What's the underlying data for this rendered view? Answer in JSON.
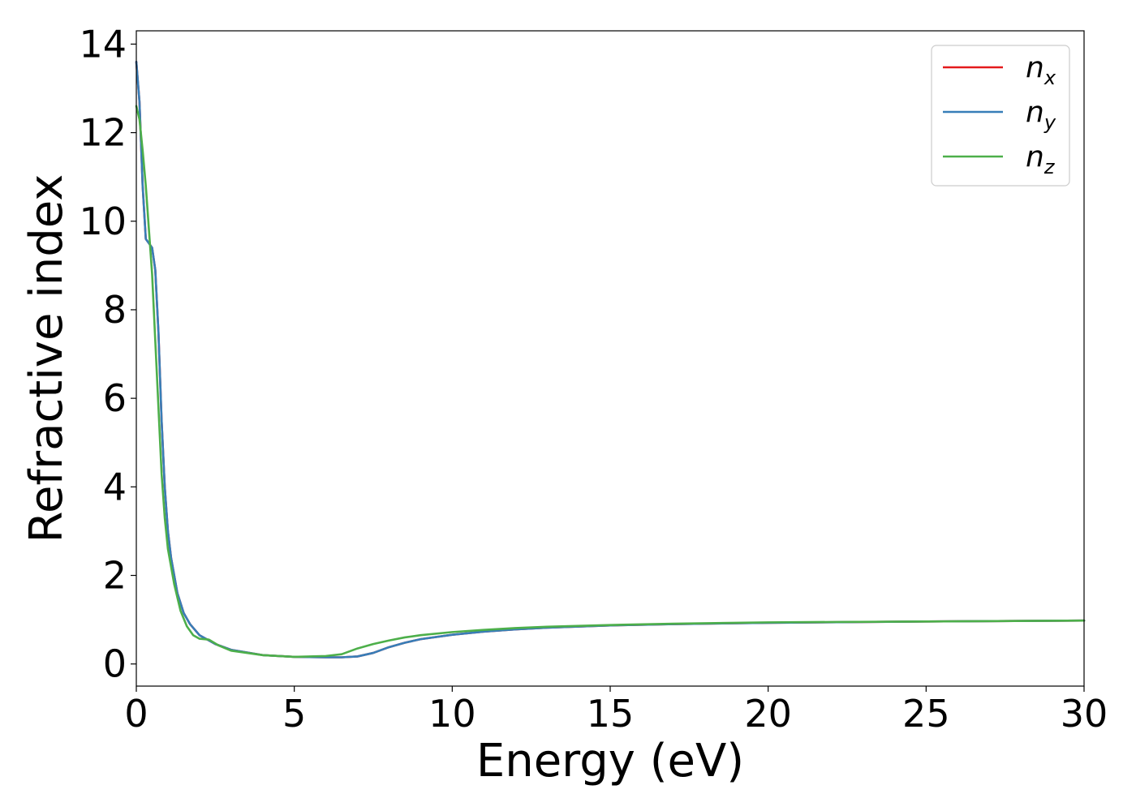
{
  "chart_data": {
    "type": "line",
    "xlabel": "Energy (eV)",
    "ylabel": "Refractive index",
    "xlim": [
      0,
      30
    ],
    "ylim": [
      -0.5,
      14.3
    ],
    "xticks": [
      "0",
      "5",
      "10",
      "15",
      "20",
      "25",
      "30"
    ],
    "yticks": [
      "0",
      "2",
      "4",
      "6",
      "8",
      "10",
      "12",
      "14"
    ],
    "grid": false,
    "legend_position": "top-right",
    "series": [
      {
        "name": "n",
        "sub": "x",
        "color": "#e41a1c",
        "x": [
          0,
          0.1,
          0.2,
          0.3,
          0.4,
          0.5,
          0.6,
          0.7,
          0.8,
          0.9,
          1.0,
          1.1,
          1.2,
          1.3,
          1.5,
          1.7,
          2.0,
          2.5,
          3.0,
          4.0,
          5.0,
          6.0,
          6.5,
          7.0,
          7.5,
          8.0,
          8.5,
          9.0,
          10.0,
          11.0,
          12.0,
          13.0,
          15.0,
          17.0,
          20.0,
          25.0,
          30.0
        ],
        "y": [
          13.6,
          12.7,
          10.8,
          9.6,
          9.5,
          9.4,
          8.9,
          7.5,
          5.5,
          4.0,
          3.0,
          2.4,
          2.0,
          1.6,
          1.15,
          0.9,
          0.65,
          0.45,
          0.32,
          0.2,
          0.16,
          0.15,
          0.15,
          0.17,
          0.25,
          0.38,
          0.48,
          0.56,
          0.66,
          0.73,
          0.78,
          0.82,
          0.87,
          0.9,
          0.93,
          0.96,
          0.98
        ]
      },
      {
        "name": "n",
        "sub": "y",
        "color": "#377eb8",
        "x": [
          0,
          0.1,
          0.2,
          0.3,
          0.4,
          0.5,
          0.6,
          0.7,
          0.8,
          0.9,
          1.0,
          1.1,
          1.2,
          1.3,
          1.5,
          1.7,
          2.0,
          2.5,
          3.0,
          4.0,
          5.0,
          6.0,
          6.5,
          7.0,
          7.5,
          8.0,
          8.5,
          9.0,
          10.0,
          11.0,
          12.0,
          13.0,
          15.0,
          17.0,
          20.0,
          25.0,
          30.0
        ],
        "y": [
          13.6,
          12.7,
          10.8,
          9.6,
          9.5,
          9.4,
          8.9,
          7.5,
          5.5,
          4.0,
          3.0,
          2.4,
          2.0,
          1.6,
          1.15,
          0.9,
          0.65,
          0.45,
          0.32,
          0.2,
          0.16,
          0.15,
          0.15,
          0.17,
          0.25,
          0.38,
          0.48,
          0.56,
          0.66,
          0.73,
          0.78,
          0.82,
          0.87,
          0.9,
          0.93,
          0.96,
          0.98
        ]
      },
      {
        "name": "n",
        "sub": "z",
        "color": "#4daf4a",
        "x": [
          0,
          0.1,
          0.2,
          0.3,
          0.4,
          0.5,
          0.6,
          0.7,
          0.8,
          0.9,
          1.0,
          1.1,
          1.2,
          1.4,
          1.6,
          1.8,
          2.0,
          2.3,
          2.6,
          3.0,
          4.0,
          5.0,
          6.0,
          6.5,
          7.0,
          7.5,
          8.0,
          8.5,
          9.0,
          10.0,
          11.0,
          12.0,
          13.0,
          15.0,
          17.0,
          20.0,
          25.0,
          30.0
        ],
        "y": [
          12.6,
          12.3,
          11.6,
          10.8,
          9.8,
          8.8,
          7.3,
          5.8,
          4.3,
          3.3,
          2.6,
          2.2,
          1.8,
          1.2,
          0.85,
          0.65,
          0.57,
          0.55,
          0.42,
          0.3,
          0.2,
          0.16,
          0.18,
          0.22,
          0.35,
          0.45,
          0.53,
          0.6,
          0.65,
          0.72,
          0.77,
          0.81,
          0.84,
          0.88,
          0.91,
          0.94,
          0.96,
          0.98
        ]
      }
    ]
  }
}
